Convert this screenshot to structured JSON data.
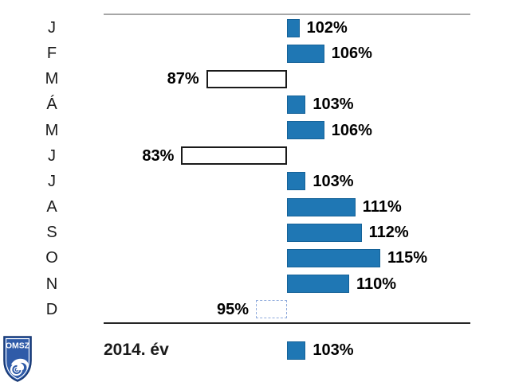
{
  "chart_data": {
    "type": "bar",
    "orientation": "horizontal",
    "baseline": 100,
    "unit": "%",
    "categories": [
      "J",
      "F",
      "M",
      "Á",
      "M",
      "J",
      "J",
      "A",
      "S",
      "O",
      "N",
      "D"
    ],
    "values": [
      102,
      106,
      87,
      103,
      106,
      83,
      103,
      111,
      112,
      115,
      110,
      95
    ],
    "value_labels": [
      "102%",
      "106%",
      "87%",
      "103%",
      "106%",
      "83%",
      "103%",
      "111%",
      "112%",
      "115%",
      "110%",
      "95%"
    ],
    "bar_styles": [
      "filled",
      "filled",
      "outline-dark",
      "filled",
      "filled",
      "outline-dark",
      "filled",
      "filled",
      "filled",
      "filled",
      "filled",
      "outline-light"
    ],
    "summary": {
      "label": "2014. év",
      "value": 103,
      "value_label": "103%"
    },
    "layout": {
      "axis_min_percent": 70,
      "axis_max_percent": 130,
      "gridlines": false,
      "labels_follow_bar_end": true
    },
    "colors": {
      "bar_fill": "#1F77B4",
      "bar_fill_border": "#156298",
      "outline_dark_border": "#1A1A1A",
      "outline_light_border": "#8FAADC",
      "top_rule": "#A6A6A6",
      "bottom_rule": "#262626",
      "label_text": "#000000"
    }
  },
  "logo": {
    "text": "OMSZ",
    "shield_fill": "#2F5BA8",
    "shield_border": "#16366F"
  }
}
